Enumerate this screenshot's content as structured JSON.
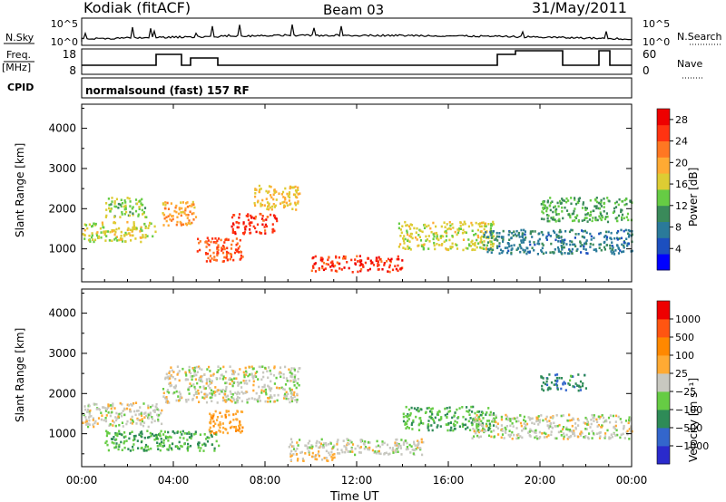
{
  "header": {
    "station": "Kodiak (fitACF)",
    "beam": "Beam 03",
    "date": "31/May/2011"
  },
  "summary": {
    "nsky_label": "N.Sky",
    "nsky_ticks": [
      "10^5",
      "10^0"
    ],
    "nsearch_label": "N.Search",
    "nsearch_ticks": [
      "10^5",
      "10^0"
    ],
    "freq_label": "Freq.",
    "freq_unit": "[MHz]",
    "freq_ticks": [
      "18",
      "8"
    ],
    "nave_label": "Nave",
    "nave_ticks": [
      "60",
      "0"
    ],
    "cpid_label": "CPID",
    "cpid_text": "normalsound (fast) 157 RF"
  },
  "chart_data": [
    {
      "type": "heatmap",
      "title": "",
      "xlabel": "Time UT",
      "ylabel": "Slant Range [km]",
      "x_ticks": [
        "00:00",
        "04:00",
        "08:00",
        "12:00",
        "16:00",
        "20:00",
        "00:00"
      ],
      "xlim_hours": [
        0,
        24
      ],
      "y_ticks": [
        1000,
        2000,
        3000,
        4000
      ],
      "ylim": [
        180,
        4600
      ],
      "colorbar": {
        "label": "Power [dB]",
        "ticks": [
          "4",
          "8",
          "12",
          "16",
          "20",
          "24",
          "28"
        ],
        "range": [
          0,
          30
        ],
        "colors": [
          "#0000ff",
          "#1c4fbf",
          "#2a7a9a",
          "#3a8a5a",
          "#66cc44",
          "#ddcc33",
          "#ffaa33",
          "#ff7722",
          "#ff3311",
          "#ee0000"
        ]
      },
      "echo_regions": [
        {
          "t0": 0.0,
          "t1": 3.2,
          "r0": 1200,
          "r1": 1700,
          "value": 16
        },
        {
          "t0": 1.0,
          "t1": 2.8,
          "r0": 1800,
          "r1": 2300,
          "value": 14
        },
        {
          "t0": 3.5,
          "t1": 5.0,
          "r0": 1600,
          "r1": 2200,
          "value": 20
        },
        {
          "t0": 5.0,
          "t1": 7.0,
          "r0": 700,
          "r1": 1300,
          "value": 24
        },
        {
          "t0": 6.5,
          "t1": 8.5,
          "r0": 1400,
          "r1": 1900,
          "value": 26
        },
        {
          "t0": 7.5,
          "t1": 9.5,
          "r0": 2000,
          "r1": 2600,
          "value": 18
        },
        {
          "t0": 10.0,
          "t1": 14.0,
          "r0": 450,
          "r1": 850,
          "value": 26
        },
        {
          "t0": 13.8,
          "t1": 18.0,
          "r0": 1000,
          "r1": 1700,
          "value": 16
        },
        {
          "t0": 17.5,
          "t1": 24.0,
          "r0": 900,
          "r1": 1500,
          "value": 8
        },
        {
          "t0": 20.0,
          "t1": 24.0,
          "r0": 1700,
          "r1": 2300,
          "value": 12
        }
      ]
    },
    {
      "type": "heatmap",
      "title": "",
      "xlabel": "Time UT",
      "ylabel": "Slant Range [km]",
      "x_ticks": [
        "00:00",
        "04:00",
        "08:00",
        "12:00",
        "16:00",
        "20:00",
        "00:00"
      ],
      "xlim_hours": [
        0,
        24
      ],
      "y_ticks": [
        1000,
        2000,
        3000,
        4000
      ],
      "ylim": [
        180,
        4600
      ],
      "colorbar": {
        "label": "Velocity [m s⁻¹]",
        "ticks": [
          "1000",
          "500",
          "100",
          "25",
          "−25",
          "−100",
          "−500",
          "−1000"
        ],
        "range": [
          -1000,
          1000
        ],
        "colors": [
          "#2a2acc",
          "#3366cc",
          "#2e8b57",
          "#66cc44",
          "#c8c8c0",
          "#ffaa33",
          "#ff8800",
          "#ff5511",
          "#ee0000"
        ]
      },
      "echo_regions": [
        {
          "t0": 0.0,
          "t1": 3.5,
          "r0": 1200,
          "r1": 1800,
          "value": 0
        },
        {
          "t0": 3.5,
          "t1": 9.5,
          "r0": 1800,
          "r1": 2700,
          "value": 0
        },
        {
          "t0": 1.0,
          "t1": 6.0,
          "r0": 600,
          "r1": 1100,
          "value": -300
        },
        {
          "t0": 5.5,
          "t1": 7.0,
          "r0": 1000,
          "r1": 1600,
          "value": 300
        },
        {
          "t0": 9.0,
          "t1": 15.0,
          "r0": 500,
          "r1": 900,
          "value": 0
        },
        {
          "t0": 9.0,
          "t1": 11.0,
          "r0": 350,
          "r1": 550,
          "value": 150
        },
        {
          "t0": 14.0,
          "t1": 18.0,
          "r0": 1100,
          "r1": 1700,
          "value": -300
        },
        {
          "t0": 17.0,
          "t1": 24.0,
          "r0": 900,
          "r1": 1500,
          "value": 0
        },
        {
          "t0": 20.0,
          "t1": 22.0,
          "r0": 2100,
          "r1": 2500,
          "value": -500
        }
      ]
    }
  ]
}
